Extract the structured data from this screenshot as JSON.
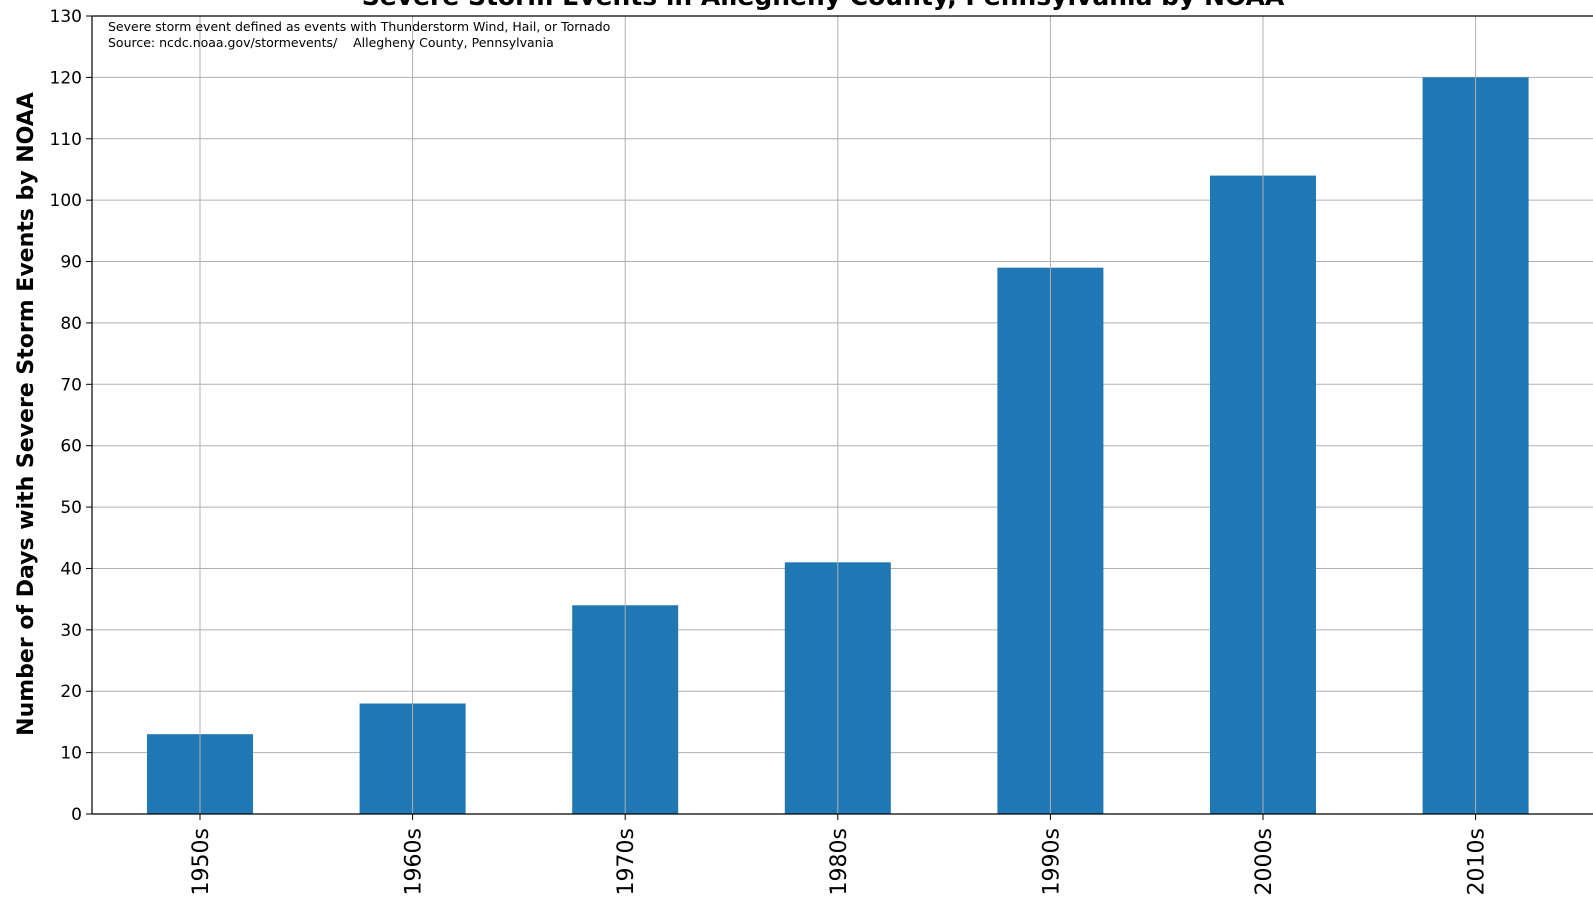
{
  "chart_data": {
    "type": "bar",
    "title": "Severe Storm Events in Allegheny County, Pennsylvania by NOAA",
    "annotations": [
      "Severe storm event defined as events with Thunderstorm Wind, Hail, or Tornado",
      "Source: ncdc.noaa.gov/stormevents/    Allegheny County, Pennsylvania"
    ],
    "xlabel": "",
    "ylabel": "Number of Days with Severe Storm Events by NOAA",
    "categories": [
      "1950s",
      "1960s",
      "1970s",
      "1980s",
      "1990s",
      "2000s",
      "2010s"
    ],
    "values": [
      13,
      18,
      34,
      41,
      89,
      104,
      120
    ],
    "ylim": [
      0,
      130
    ],
    "yticks": [
      0,
      10,
      20,
      30,
      40,
      50,
      60,
      70,
      80,
      90,
      100,
      110,
      120,
      130
    ],
    "grid": true,
    "legend": "none",
    "bar_color": "#1f77b4"
  }
}
